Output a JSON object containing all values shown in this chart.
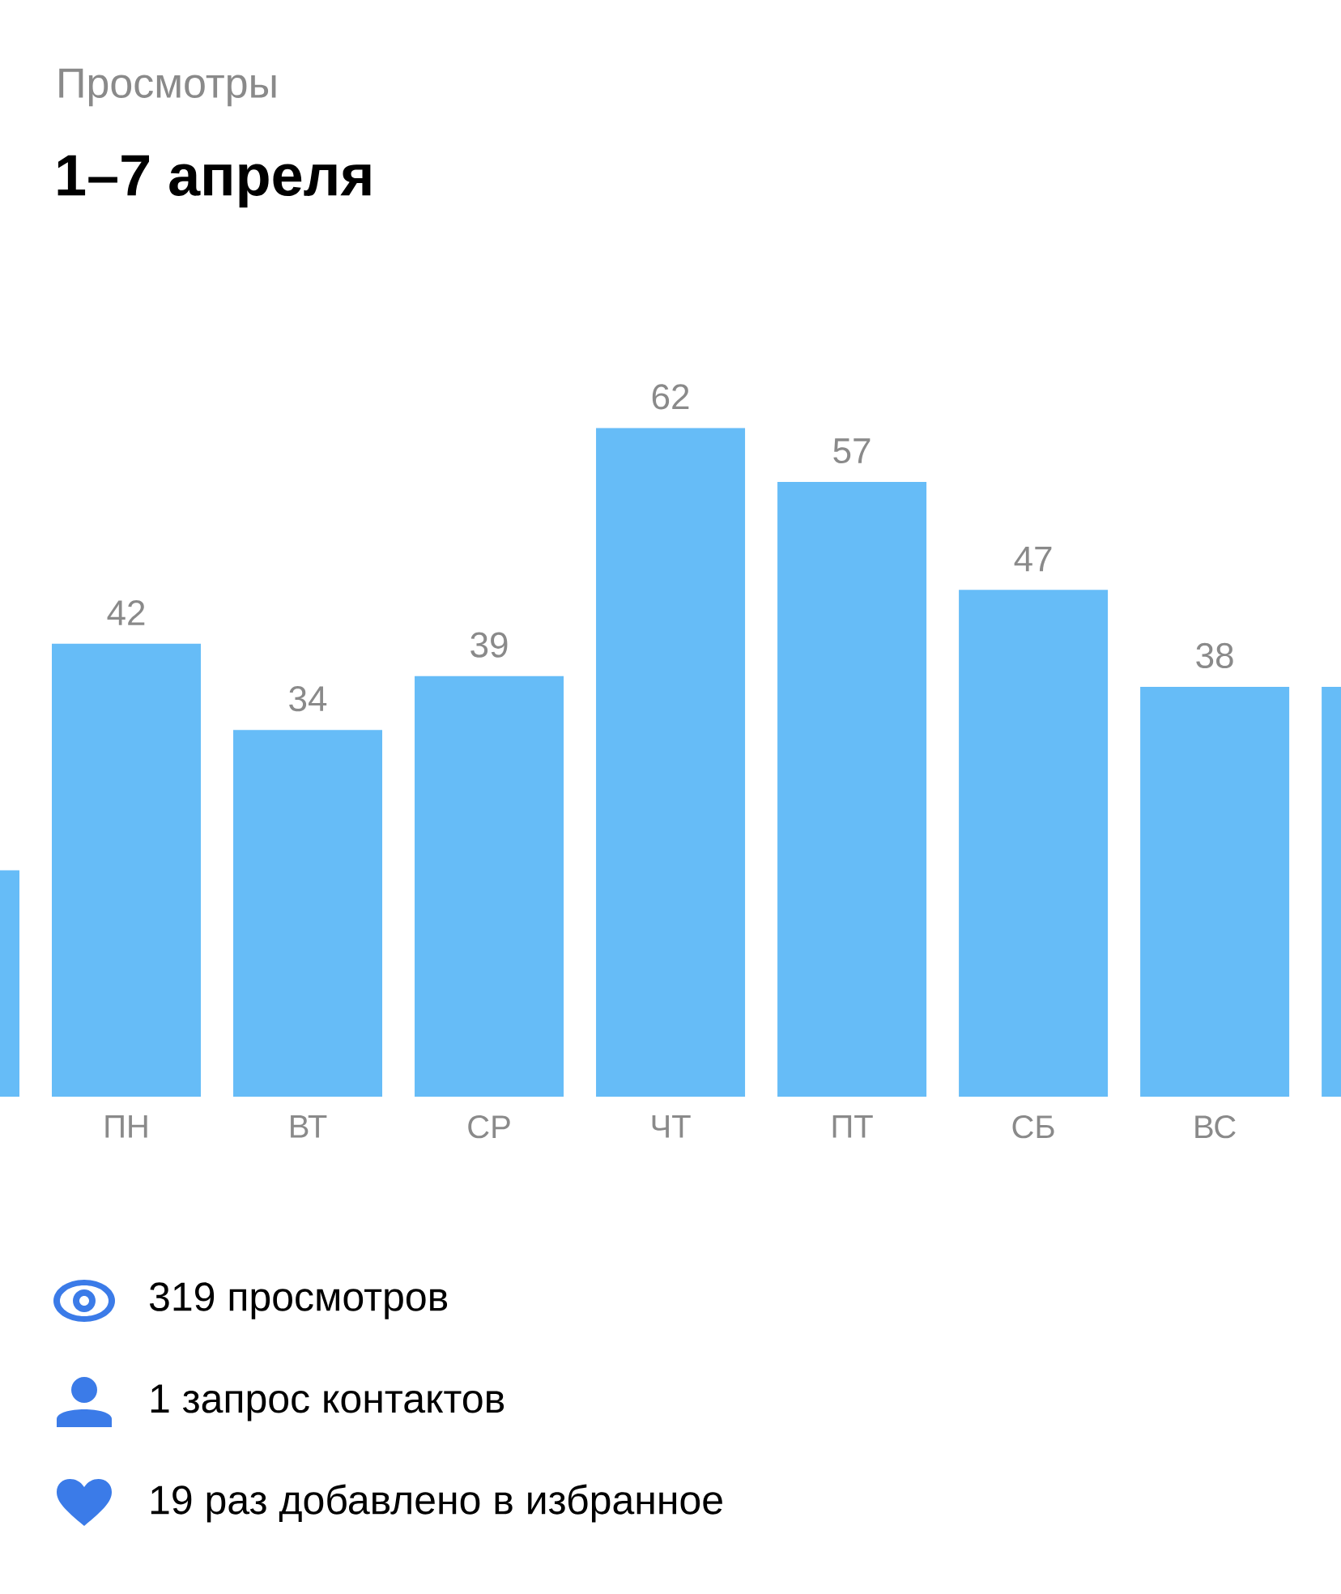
{
  "chart_data": {
    "type": "bar",
    "title": "Просмотры",
    "subtitle": "1–7 апреля",
    "categories": [
      null,
      "ПН",
      "ВТ",
      "СР",
      "ЧТ",
      "ПТ",
      "СБ",
      "ВС",
      null
    ],
    "values": [
      21,
      42,
      34,
      39,
      62,
      57,
      47,
      38,
      38
    ],
    "value_labels": [
      null,
      "42",
      "34",
      "39",
      "62",
      "57",
      "47",
      "38",
      null
    ],
    "color": "#66bcf7",
    "annotations": [
      "319 просмотров",
      "1 запрос контактов",
      "19 раз добавлено в избранное"
    ]
  }
}
